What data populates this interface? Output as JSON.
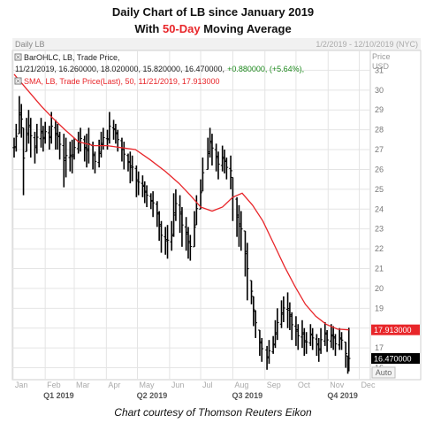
{
  "header": {
    "title_line1": "Daily Chart of LB since January 2019",
    "title_line2_prefix": "With ",
    "title_line2_accent": "50-Day",
    "title_line2_suffix": " Moving Average"
  },
  "panel": {
    "name": "Daily LB",
    "date_range": "1/2/2019 - 12/10/2019 (NYC)",
    "price_label": "Price",
    "currency_label": "USD",
    "auto_label": "Auto"
  },
  "legend": {
    "bar_series_label": "BarOHLC, LB, Trade Price,",
    "bar_values": "11/21/2019, 16.260000, 18.020000, 15.820000, 16.470000,",
    "bar_change": "+0.880000, (+5.64%),",
    "sma_label": "SMA, LB, Trade Price(Last),  50,  11/21/2019, 17.913000"
  },
  "colors": {
    "price_bars": "#000000",
    "sma": "#e8262a",
    "grid": "#e4e4e4",
    "axis_text": "#777777",
    "accent": "#e8262a",
    "up_change": "#1e8a1e"
  },
  "footer": {
    "caption": "Chart courtesy of Thomson Reuters Eikon"
  },
  "chart_data": {
    "type": "line",
    "ylim": [
      15.4,
      32
    ],
    "y_ticks": [
      16,
      17,
      18,
      19,
      20,
      21,
      22,
      23,
      24,
      25,
      26,
      27,
      28,
      29,
      30,
      31
    ],
    "grid": true,
    "x_range": [
      "2019-01-02",
      "2019-12-10"
    ],
    "month_ticks": [
      {
        "label": "Jan",
        "date": "2019-01-01"
      },
      {
        "label": "Feb",
        "date": "2019-02-01"
      },
      {
        "label": "Mar",
        "date": "2019-03-01"
      },
      {
        "label": "Apr",
        "date": "2019-04-01"
      },
      {
        "label": "May",
        "date": "2019-05-01"
      },
      {
        "label": "Jun",
        "date": "2019-06-01"
      },
      {
        "label": "Jul",
        "date": "2019-07-01"
      },
      {
        "label": "Aug",
        "date": "2019-08-01"
      },
      {
        "label": "Sep",
        "date": "2019-09-01"
      },
      {
        "label": "Oct",
        "date": "2019-10-01"
      },
      {
        "label": "Nov",
        "date": "2019-11-01"
      },
      {
        "label": "Dec",
        "date": "2019-12-01"
      }
    ],
    "quarter_ticks": [
      {
        "label": "Q1 2019",
        "date": "2019-02-14"
      },
      {
        "label": "Q2 2019",
        "date": "2019-05-15"
      },
      {
        "label": "Q3 2019",
        "date": "2019-08-15"
      },
      {
        "label": "Q4 2019",
        "date": "2019-11-15"
      }
    ],
    "series": [
      {
        "kind": "ohlc",
        "points": [
          [
            "2019-01-02",
            27.6,
            26.6
          ],
          [
            "2019-01-04",
            28.3,
            26.9
          ],
          [
            "2019-01-07",
            29.7,
            27.8
          ],
          [
            "2019-01-09",
            29.3,
            27.6
          ],
          [
            "2019-01-11",
            28.1,
            24.7
          ],
          [
            "2019-01-14",
            28.6,
            26.9
          ],
          [
            "2019-01-16",
            29.0,
            27.3
          ],
          [
            "2019-01-18",
            28.6,
            26.6
          ],
          [
            "2019-01-22",
            27.9,
            26.3
          ],
          [
            "2019-01-24",
            28.3,
            26.8
          ],
          [
            "2019-01-28",
            28.6,
            27.1
          ],
          [
            "2019-01-30",
            28.2,
            26.9
          ],
          [
            "2019-02-01",
            28.4,
            27.3
          ],
          [
            "2019-02-05",
            28.2,
            27.0
          ],
          [
            "2019-02-07",
            28.9,
            27.3
          ],
          [
            "2019-02-11",
            28.5,
            27.0
          ],
          [
            "2019-02-13",
            28.3,
            27.0
          ],
          [
            "2019-02-15",
            27.9,
            26.5
          ],
          [
            "2019-02-19",
            27.8,
            25.1
          ],
          [
            "2019-02-21",
            27.6,
            25.6
          ],
          [
            "2019-02-25",
            27.4,
            25.9
          ],
          [
            "2019-02-27",
            27.5,
            25.8
          ],
          [
            "2019-03-01",
            27.6,
            26.5
          ],
          [
            "2019-03-05",
            27.9,
            26.8
          ],
          [
            "2019-03-07",
            28.1,
            26.9
          ],
          [
            "2019-03-11",
            27.7,
            26.4
          ],
          [
            "2019-03-13",
            27.8,
            26.1
          ],
          [
            "2019-03-15",
            28.1,
            26.3
          ],
          [
            "2019-03-19",
            27.4,
            26.0
          ],
          [
            "2019-03-21",
            26.9,
            25.8
          ],
          [
            "2019-03-25",
            27.5,
            26.1
          ],
          [
            "2019-03-27",
            27.9,
            26.6
          ],
          [
            "2019-03-29",
            28.1,
            27.0
          ],
          [
            "2019-04-02",
            28.0,
            27.0
          ],
          [
            "2019-04-04",
            28.9,
            27.3
          ],
          [
            "2019-04-08",
            28.5,
            27.5
          ],
          [
            "2019-04-10",
            28.3,
            27.3
          ],
          [
            "2019-04-12",
            28.0,
            26.9
          ],
          [
            "2019-04-16",
            27.6,
            26.4
          ],
          [
            "2019-04-18",
            27.4,
            26.0
          ],
          [
            "2019-04-22",
            26.8,
            25.9
          ],
          [
            "2019-04-24",
            26.9,
            25.3
          ],
          [
            "2019-04-26",
            26.7,
            25.4
          ],
          [
            "2019-04-30",
            26.2,
            24.6
          ],
          [
            "2019-05-02",
            25.9,
            24.7
          ],
          [
            "2019-05-06",
            25.7,
            24.6
          ],
          [
            "2019-05-08",
            25.4,
            24.3
          ],
          [
            "2019-05-10",
            25.2,
            24.1
          ],
          [
            "2019-05-14",
            24.8,
            24.0
          ],
          [
            "2019-05-16",
            24.9,
            23.6
          ],
          [
            "2019-05-20",
            24.4,
            23.1
          ],
          [
            "2019-05-22",
            23.9,
            22.4
          ],
          [
            "2019-05-24",
            23.4,
            21.8
          ],
          [
            "2019-05-28",
            23.1,
            21.7
          ],
          [
            "2019-05-30",
            23.2,
            21.5
          ],
          [
            "2019-06-03",
            23.4,
            21.9
          ],
          [
            "2019-06-05",
            24.8,
            22.6
          ],
          [
            "2019-06-07",
            25.0,
            23.4
          ],
          [
            "2019-06-11",
            24.7,
            22.8
          ],
          [
            "2019-06-13",
            24.1,
            22.1
          ],
          [
            "2019-06-17",
            23.6,
            21.9
          ],
          [
            "2019-06-19",
            23.1,
            21.5
          ],
          [
            "2019-06-21",
            22.7,
            21.4
          ],
          [
            "2019-06-25",
            23.9,
            22.1
          ],
          [
            "2019-06-27",
            24.7,
            23.2
          ],
          [
            "2019-07-01",
            25.5,
            24.0
          ],
          [
            "2019-07-03",
            26.6,
            24.9
          ],
          [
            "2019-07-08",
            27.6,
            26.0
          ],
          [
            "2019-07-10",
            28.1,
            26.6
          ],
          [
            "2019-07-12",
            27.8,
            26.2
          ],
          [
            "2019-07-16",
            27.3,
            25.9
          ],
          [
            "2019-07-18",
            26.9,
            25.5
          ],
          [
            "2019-07-22",
            27.2,
            25.9
          ],
          [
            "2019-07-24",
            27.0,
            25.8
          ],
          [
            "2019-07-26",
            26.6,
            25.5
          ],
          [
            "2019-07-30",
            26.7,
            25.0
          ],
          [
            "2019-08-01",
            25.6,
            23.4
          ],
          [
            "2019-08-05",
            24.6,
            22.6
          ],
          [
            "2019-08-07",
            24.2,
            22.1
          ],
          [
            "2019-08-09",
            23.9,
            21.9
          ],
          [
            "2019-08-13",
            22.9,
            20.6
          ],
          [
            "2019-08-15",
            22.3,
            19.4
          ],
          [
            "2019-08-19",
            20.4,
            19.2
          ],
          [
            "2019-08-21",
            19.6,
            18.1
          ],
          [
            "2019-08-23",
            18.9,
            17.5
          ],
          [
            "2019-08-27",
            17.9,
            16.6
          ],
          [
            "2019-08-29",
            17.5,
            16.3
          ],
          [
            "2019-09-03",
            17.1,
            15.9
          ],
          [
            "2019-09-05",
            17.4,
            16.2
          ],
          [
            "2019-09-09",
            17.6,
            16.7
          ],
          [
            "2019-09-11",
            18.4,
            17.0
          ],
          [
            "2019-09-13",
            19.0,
            17.4
          ],
          [
            "2019-09-17",
            19.4,
            18.0
          ],
          [
            "2019-09-19",
            19.6,
            18.3
          ],
          [
            "2019-09-23",
            19.8,
            18.0
          ],
          [
            "2019-09-25",
            19.3,
            17.9
          ],
          [
            "2019-09-27",
            18.8,
            17.4
          ],
          [
            "2019-10-01",
            18.6,
            17.1
          ],
          [
            "2019-10-03",
            18.2,
            16.9
          ],
          [
            "2019-10-07",
            18.4,
            17.0
          ],
          [
            "2019-10-09",
            18.0,
            16.6
          ],
          [
            "2019-10-11",
            17.8,
            16.7
          ],
          [
            "2019-10-15",
            18.2,
            17.1
          ],
          [
            "2019-10-17",
            18.0,
            16.9
          ],
          [
            "2019-10-21",
            17.7,
            16.6
          ],
          [
            "2019-10-23",
            17.5,
            16.3
          ],
          [
            "2019-10-25",
            18.0,
            16.7
          ],
          [
            "2019-10-29",
            18.3,
            17.1
          ],
          [
            "2019-10-31",
            17.9,
            16.8
          ],
          [
            "2019-11-04",
            18.2,
            17.0
          ],
          [
            "2019-11-06",
            18.1,
            16.9
          ],
          [
            "2019-11-08",
            17.7,
            16.6
          ],
          [
            "2019-11-12",
            18.0,
            16.9
          ],
          [
            "2019-11-14",
            17.8,
            16.9
          ],
          [
            "2019-11-18",
            17.3,
            16.0
          ],
          [
            "2019-11-20",
            16.6,
            15.7
          ],
          [
            "2019-11-21",
            18.02,
            15.82
          ]
        ]
      },
      {
        "name": "SMA 50",
        "kind": "line",
        "points": [
          [
            "2019-01-02",
            30.8
          ],
          [
            "2019-01-15",
            30.0
          ],
          [
            "2019-01-28",
            29.2
          ],
          [
            "2019-02-08",
            28.6
          ],
          [
            "2019-02-20",
            28.0
          ],
          [
            "2019-03-05",
            27.4
          ],
          [
            "2019-03-20",
            27.2
          ],
          [
            "2019-04-02",
            27.2
          ],
          [
            "2019-04-15",
            27.1
          ],
          [
            "2019-04-29",
            27.0
          ],
          [
            "2019-05-13",
            26.5
          ],
          [
            "2019-05-28",
            25.9
          ],
          [
            "2019-06-10",
            25.3
          ],
          [
            "2019-06-21",
            24.7
          ],
          [
            "2019-07-01",
            24.1
          ],
          [
            "2019-07-12",
            23.9
          ],
          [
            "2019-07-22",
            24.1
          ],
          [
            "2019-08-01",
            24.6
          ],
          [
            "2019-08-10",
            24.8
          ],
          [
            "2019-08-20",
            24.2
          ],
          [
            "2019-08-30",
            23.4
          ],
          [
            "2019-09-10",
            22.2
          ],
          [
            "2019-09-20",
            21.1
          ],
          [
            "2019-09-30",
            20.1
          ],
          [
            "2019-10-10",
            19.2
          ],
          [
            "2019-10-20",
            18.6
          ],
          [
            "2019-10-30",
            18.2
          ],
          [
            "2019-11-10",
            17.95
          ],
          [
            "2019-11-21",
            17.913
          ]
        ]
      }
    ],
    "price_tags": [
      {
        "value": 17.913,
        "label": "17.913000",
        "color": "#e8262a"
      },
      {
        "value": 16.47,
        "label": "16.470000",
        "color": "#000000"
      }
    ]
  }
}
